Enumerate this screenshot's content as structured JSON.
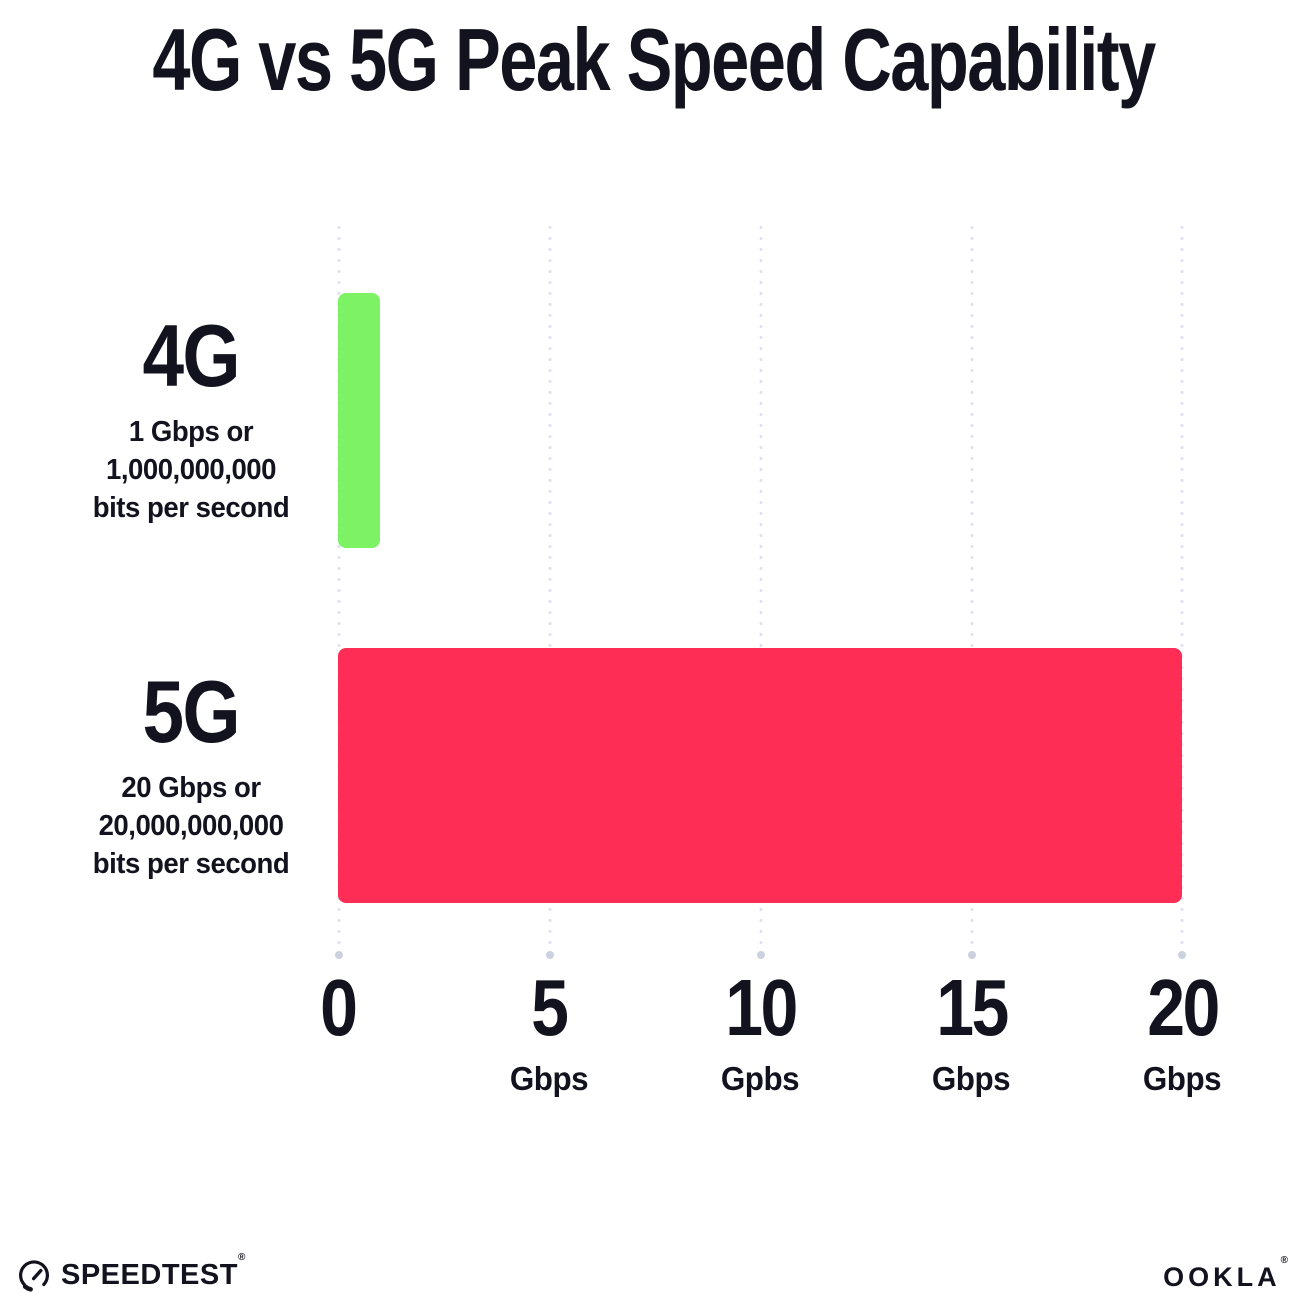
{
  "title": "4G vs 5G Peak Speed Capability",
  "chart_data": {
    "type": "bar",
    "orientation": "horizontal",
    "title": "4G vs 5G Peak Speed Capability",
    "categories": [
      "4G",
      "5G"
    ],
    "values": [
      1,
      20
    ],
    "value_unit": "Gbps",
    "xlim": [
      0,
      20
    ],
    "x_tick_step": 5,
    "grid": "dotted-vertical",
    "bar_colors": [
      "#7CF264",
      "#FD2D55"
    ],
    "series_labels": [
      {
        "name": "4G",
        "sublines": [
          "1 Gbps or",
          "1,000,000,000",
          "bits per second"
        ]
      },
      {
        "name": "5G",
        "sublines": [
          "20 Gbps or",
          "20,000,000,000",
          "bits per second"
        ]
      }
    ],
    "x_ticks": [
      {
        "value": "0",
        "unit": ""
      },
      {
        "value": "5",
        "unit": "Gbps"
      },
      {
        "value": "10",
        "unit": "Gpbs"
      },
      {
        "value": "15",
        "unit": "Gbps"
      },
      {
        "value": "20",
        "unit": "Gbps"
      }
    ]
  },
  "footer": {
    "speedtest_label": "SPEEDTEST",
    "speedtest_tm": "®",
    "ookla_label": "OOKLA",
    "ookla_tm": "®"
  },
  "colors": {
    "bar_4g": "#7CF264",
    "bar_5g": "#FD2D55",
    "grid_dot": "#dfe2ef",
    "grid_end_dot": "#ccd1e0",
    "text": "#13131f",
    "background": "#ffffff"
  }
}
